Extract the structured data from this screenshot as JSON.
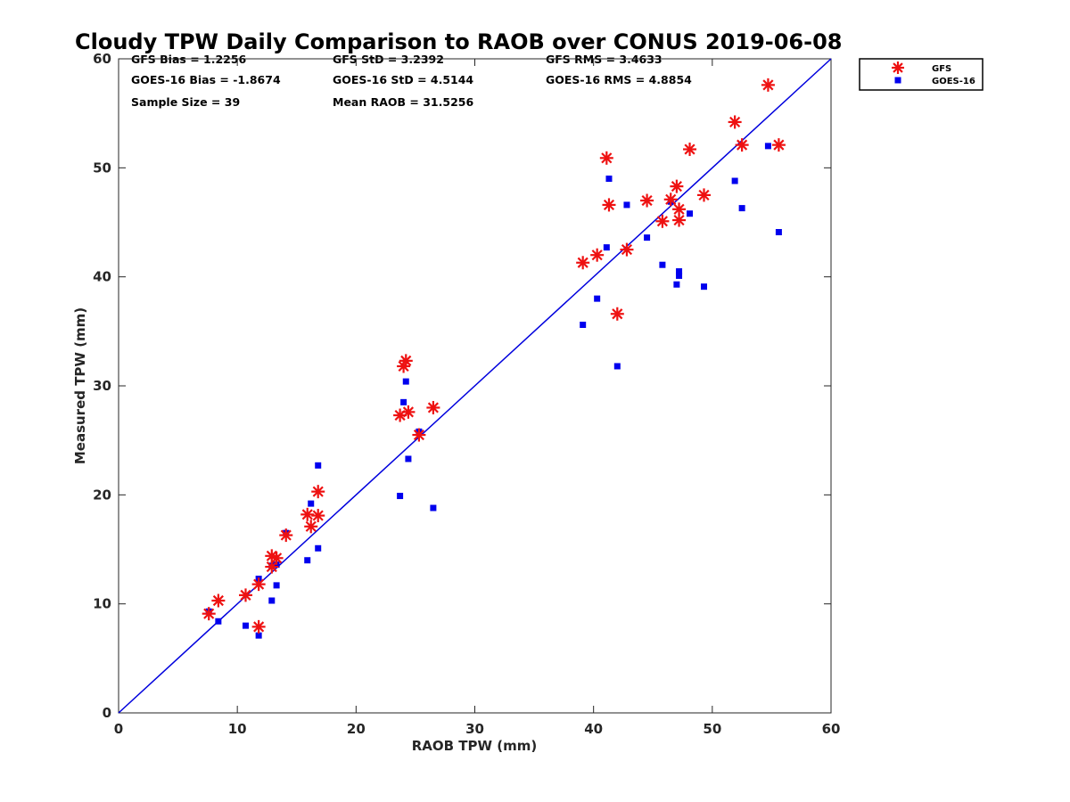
{
  "chart_data": {
    "type": "scatter",
    "title": "Cloudy TPW Daily Comparison to RAOB over CONUS 2019-06-08",
    "xlabel": "RAOB TPW (mm)",
    "ylabel": "Measured TPW (mm)",
    "xlim": [
      0,
      60
    ],
    "ylim": [
      0,
      60
    ],
    "x_ticks": [
      0,
      10,
      20,
      30,
      40,
      50,
      60
    ],
    "y_ticks": [
      0,
      10,
      20,
      30,
      40,
      50,
      60
    ],
    "grid": false,
    "legend_position": "outside-top-right",
    "stats": [
      [
        "GFS Bias = 1.2256",
        "GFS StD = 3.2392",
        "GFS RMS = 3.4633"
      ],
      [
        "GOES-16 Bias = -1.8674",
        "GOES-16 StD = 4.5144",
        "GOES-16 RMS = 4.8854"
      ],
      [
        "Sample Size = 39",
        "Mean RAOB = 31.5256"
      ]
    ],
    "reference_line": {
      "x": [
        0,
        60
      ],
      "y": [
        0,
        60
      ],
      "color": "#0000dd"
    },
    "series": [
      {
        "name": "GFS",
        "marker": "asterisk",
        "color": "#ee1111",
        "points": [
          [
            7.6,
            9.1
          ],
          [
            8.4,
            10.3
          ],
          [
            10.7,
            10.8
          ],
          [
            11.8,
            11.8
          ],
          [
            11.8,
            7.9
          ],
          [
            12.9,
            13.4
          ],
          [
            12.9,
            14.4
          ],
          [
            13.3,
            14.2
          ],
          [
            14.1,
            16.3
          ],
          [
            15.9,
            18.2
          ],
          [
            16.2,
            17.1
          ],
          [
            16.8,
            18.1
          ],
          [
            16.8,
            20.3
          ],
          [
            23.7,
            27.3
          ],
          [
            24.0,
            31.8
          ],
          [
            24.2,
            32.3
          ],
          [
            24.4,
            27.6
          ],
          [
            25.3,
            25.5
          ],
          [
            26.5,
            28.0
          ],
          [
            39.1,
            41.3
          ],
          [
            40.3,
            42.0
          ],
          [
            41.1,
            50.9
          ],
          [
            41.3,
            46.6
          ],
          [
            42.0,
            36.6
          ],
          [
            42.8,
            42.5
          ],
          [
            44.5,
            47.0
          ],
          [
            45.8,
            45.1
          ],
          [
            46.5,
            47.1
          ],
          [
            47.0,
            48.3
          ],
          [
            47.2,
            46.2
          ],
          [
            47.2,
            45.2
          ],
          [
            48.1,
            51.7
          ],
          [
            49.3,
            47.5
          ],
          [
            51.9,
            54.2
          ],
          [
            52.5,
            52.1
          ],
          [
            54.7,
            57.6
          ],
          [
            55.6,
            52.1
          ]
        ]
      },
      {
        "name": "GOES-16",
        "marker": "square",
        "color": "#0000ee",
        "points": [
          [
            7.6,
            9.3
          ],
          [
            8.4,
            8.4
          ],
          [
            10.7,
            8.0
          ],
          [
            11.8,
            7.1
          ],
          [
            11.8,
            12.3
          ],
          [
            12.9,
            10.3
          ],
          [
            12.9,
            13.5
          ],
          [
            13.3,
            11.7
          ],
          [
            13.3,
            13.6
          ],
          [
            14.1,
            16.5
          ],
          [
            15.9,
            14.0
          ],
          [
            16.2,
            19.2
          ],
          [
            16.8,
            15.1
          ],
          [
            16.8,
            22.7
          ],
          [
            23.7,
            19.9
          ],
          [
            24.0,
            28.5
          ],
          [
            24.2,
            30.4
          ],
          [
            24.4,
            23.3
          ],
          [
            25.3,
            25.8
          ],
          [
            26.5,
            18.8
          ],
          [
            39.1,
            35.6
          ],
          [
            40.3,
            38.0
          ],
          [
            41.1,
            42.7
          ],
          [
            41.3,
            49.0
          ],
          [
            42.0,
            31.8
          ],
          [
            42.8,
            46.6
          ],
          [
            44.5,
            43.6
          ],
          [
            45.8,
            41.1
          ],
          [
            46.5,
            46.9
          ],
          [
            47.0,
            39.3
          ],
          [
            47.2,
            40.5
          ],
          [
            47.2,
            40.1
          ],
          [
            48.1,
            45.8
          ],
          [
            49.3,
            39.1
          ],
          [
            51.9,
            48.8
          ],
          [
            52.5,
            46.3
          ],
          [
            54.7,
            52.0
          ],
          [
            55.6,
            44.1
          ]
        ]
      }
    ]
  }
}
